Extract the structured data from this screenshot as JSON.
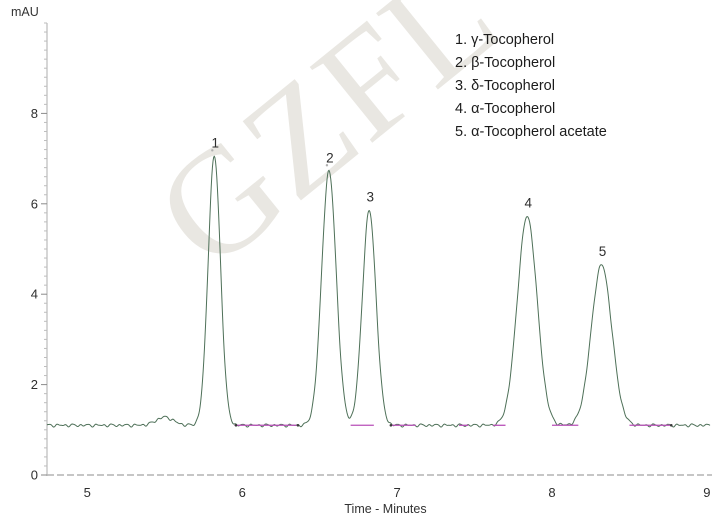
{
  "watermark": {
    "text": "GZFL",
    "color": "#e9e7e2"
  },
  "axes": {
    "y_title": "mAU",
    "x_title": "Time - Minutes"
  },
  "legend": {
    "items": [
      {
        "number": "1.",
        "name": "γ-Tocopherol"
      },
      {
        "number": "2.",
        "name": "β-Tocopherol"
      },
      {
        "number": "3.",
        "name": "δ-Tocopherol"
      },
      {
        "number": "4.",
        "name": "α-Tocopherol"
      },
      {
        "number": "5.",
        "name": "α-Tocopherol acetate"
      }
    ]
  },
  "chart_data": {
    "type": "line",
    "title": "",
    "xlabel": "Time - Minutes",
    "ylabel": "mAU",
    "xlim": [
      4.74,
      9.02
    ],
    "ylim": [
      0,
      10
    ],
    "x_ticks": [
      5,
      6,
      7,
      8,
      9
    ],
    "y_ticks": [
      0,
      2,
      4,
      6,
      8
    ],
    "y_minor_tick_step": 0.2,
    "grid": false,
    "baseline_mau": 1.1,
    "trace_color": "#4e7058",
    "integration_color": "#b84fb8",
    "axis_color": "#b3b3b3",
    "peaks": [
      {
        "label": "1",
        "compound": "γ-Tocopherol",
        "rt_min": 5.82,
        "apex_mau": 7.05,
        "sigma_min": 0.04
      },
      {
        "label": "2",
        "compound": "β-Tocopherol",
        "rt_min": 6.56,
        "apex_mau": 6.72,
        "sigma_min": 0.047
      },
      {
        "label": "3",
        "compound": "δ-Tocopherol",
        "rt_min": 6.82,
        "apex_mau": 5.85,
        "sigma_min": 0.044
      },
      {
        "label": "4",
        "compound": "α-Tocopherol",
        "rt_min": 7.84,
        "apex_mau": 5.72,
        "sigma_min": 0.064
      },
      {
        "label": "5",
        "compound": "α-Tocopherol acetate",
        "rt_min": 8.32,
        "apex_mau": 4.65,
        "sigma_min": 0.066
      }
    ],
    "minor_feature": {
      "rt_min": 5.5,
      "apex_mau": 1.28,
      "sigma_min": 0.055
    },
    "integration_marks_min": [
      [
        5.95,
        6.35
      ],
      [
        6.7,
        6.85
      ],
      [
        6.96,
        7.12
      ],
      [
        7.4,
        7.46
      ],
      [
        7.62,
        7.7
      ],
      [
        8.0,
        8.17
      ],
      [
        8.5,
        8.77
      ]
    ],
    "endpoint_dots_min": [
      5.96,
      6.36,
      6.96,
      8.77
    ],
    "apex_dot_peaks": [
      "1",
      "2"
    ]
  }
}
